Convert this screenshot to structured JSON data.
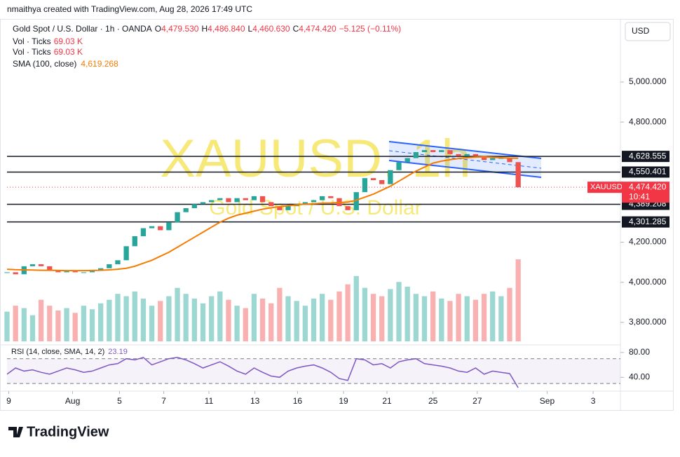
{
  "header": {
    "credit": "nmaithya created with TradingView.com, Aug 28, 2026 17:49 UTC",
    "currency_button": "USD"
  },
  "footer": {
    "brand": "TradingView"
  },
  "watermark": {
    "title": "XAUUSD, 1h",
    "subtitle": "Gold Spot / U.S. Dollar"
  },
  "chart_data": [
    {
      "type": "candlestick",
      "title": "Gold Spot / U.S. Dollar · 1h · OANDA",
      "ohlc": [
        {
          "key": "O",
          "value": 4479.53,
          "label": "4,479.530"
        },
        {
          "key": "H",
          "value": 4486.84,
          "label": "4,486.840"
        },
        {
          "key": "L",
          "value": 4460.63,
          "label": "4,460.630"
        },
        {
          "key": "C",
          "value": 4474.42,
          "label": "4,474.420"
        }
      ],
      "change": {
        "value": -5.125,
        "label": "−5.125 (−0.11%)"
      },
      "x": [
        0,
        1,
        2,
        3,
        4,
        5,
        6,
        7,
        8,
        9,
        10,
        11,
        12,
        13,
        14,
        15,
        16,
        17,
        18,
        19,
        20,
        21,
        22,
        23,
        24,
        25,
        26,
        27,
        28,
        29,
        30,
        31,
        32,
        33,
        34,
        35,
        36,
        37,
        38,
        39,
        40,
        41,
        42,
        43,
        44,
        45,
        46,
        47,
        48,
        49,
        50,
        51,
        52,
        53,
        54,
        55,
        56,
        57,
        58,
        59,
        60
      ],
      "xlim": [
        0,
        72
      ],
      "xticks": [
        {
          "value": 0.2,
          "label": "9"
        },
        {
          "value": 7.7,
          "label": "Aug"
        },
        {
          "value": 13.2,
          "label": "5"
        },
        {
          "value": 18.4,
          "label": "7"
        },
        {
          "value": 23.7,
          "label": "11"
        },
        {
          "value": 29.1,
          "label": "13"
        },
        {
          "value": 34.1,
          "label": "16"
        },
        {
          "value": 39.5,
          "label": "19"
        },
        {
          "value": 44.6,
          "label": "21"
        },
        {
          "value": 50.0,
          "label": "25"
        },
        {
          "value": 55.2,
          "label": "27"
        },
        {
          "value": 63.4,
          "label": "Sep"
        },
        {
          "value": 68.8,
          "label": "3"
        }
      ],
      "ylim": [
        3694.5,
        5304.5
      ],
      "yticks": [
        {
          "value": 3800,
          "label": "3,800.000"
        },
        {
          "value": 4000,
          "label": "4,000.000"
        },
        {
          "value": 4200,
          "label": "4,200.000"
        },
        {
          "value": 4800,
          "label": "4,800.000"
        },
        {
          "value": 5000,
          "label": "5,000.000"
        }
      ],
      "grid": false,
      "series": [
        {
          "name": "Close",
          "up_color": "#26a69a",
          "down_color": "#ef5350",
          "values": [
            4050,
            4040,
            4080,
            4090,
            4080,
            4060,
            4050,
            4060,
            4050,
            4050,
            4060,
            4070,
            4090,
            4110,
            4180,
            4230,
            4270,
            4280,
            4260,
            4300,
            4350,
            4370,
            4390,
            4400,
            4410,
            4420,
            4400,
            4420,
            4410,
            4430,
            4400,
            4380,
            4360,
            4380,
            4390,
            4400,
            4410,
            4430,
            4420,
            4380,
            4360,
            4450,
            4520,
            4510,
            4490,
            4560,
            4600,
            4620,
            4650,
            4660,
            4650,
            4660,
            4640,
            4630,
            4640,
            4630,
            4610,
            4620,
            4620,
            4600,
            4474.42
          ]
        },
        {
          "name": "SMA (100, close)",
          "color": "#f57c00",
          "last_label": "4,619.268",
          "values": [
            4065,
            4063,
            4062,
            4061,
            4060,
            4060,
            4059,
            4058,
            4058,
            4058,
            4059,
            4060,
            4062,
            4065,
            4070,
            4080,
            4095,
            4110,
            4130,
            4150,
            4175,
            4200,
            4225,
            4250,
            4275,
            4300,
            4320,
            4335,
            4345,
            4355,
            4365,
            4372,
            4378,
            4382,
            4386,
            4390,
            4392,
            4395,
            4396,
            4398,
            4400,
            4410,
            4425,
            4440,
            4460,
            4480,
            4505,
            4530,
            4555,
            4575,
            4595,
            4605,
            4612,
            4618,
            4622,
            4625,
            4626,
            4624,
            4622,
            4620,
            4619.268
          ]
        }
      ],
      "volume": {
        "name": "Vol · Ticks",
        "last_label": "69.03 K",
        "values": [
          25,
          30,
          28,
          22,
          35,
          30,
          26,
          28,
          24,
          30,
          27,
          32,
          35,
          40,
          38,
          42,
          36,
          30,
          34,
          38,
          45,
          40,
          36,
          32,
          38,
          42,
          35,
          30,
          28,
          40,
          36,
          32,
          45,
          38,
          34,
          30,
          36,
          40,
          35,
          42,
          48,
          55,
          45,
          40,
          38,
          44,
          50,
          46,
          40,
          38,
          42,
          36,
          34,
          40,
          38,
          35,
          40,
          42,
          38,
          45,
          69.03
        ]
      },
      "levels": [
        {
          "value": 4628.555,
          "label": "4,628.555"
        },
        {
          "value": 4550.401,
          "label": "4,550.401"
        },
        {
          "value": 4389.208,
          "label": "4,389.208"
        },
        {
          "value": 4301.285,
          "label": "4,301.285"
        }
      ],
      "last_price": {
        "symbol": "XAUUSD",
        "value": 4474.42,
        "label": "4,474.420",
        "countdown": "10:41"
      }
    },
    {
      "type": "line",
      "title": "RSI (14, close, SMA, 14, 2)",
      "last_label": "23.19",
      "color": "#7e57c2",
      "ylim": [
        20,
        90
      ],
      "yticks": [
        {
          "value": 40,
          "label": "40.00"
        },
        {
          "value": 80,
          "label": "80.00"
        }
      ],
      "bands": [
        30,
        70
      ],
      "values": [
        45,
        55,
        50,
        52,
        48,
        45,
        50,
        55,
        52,
        48,
        50,
        55,
        60,
        62,
        70,
        68,
        72,
        60,
        65,
        70,
        72,
        68,
        62,
        55,
        60,
        65,
        58,
        50,
        45,
        55,
        48,
        42,
        40,
        50,
        55,
        58,
        60,
        55,
        48,
        38,
        35,
        70,
        68,
        60,
        62,
        55,
        65,
        68,
        70,
        62,
        60,
        58,
        55,
        50,
        48,
        55,
        45,
        50,
        48,
        46,
        23.19
      ]
    }
  ]
}
